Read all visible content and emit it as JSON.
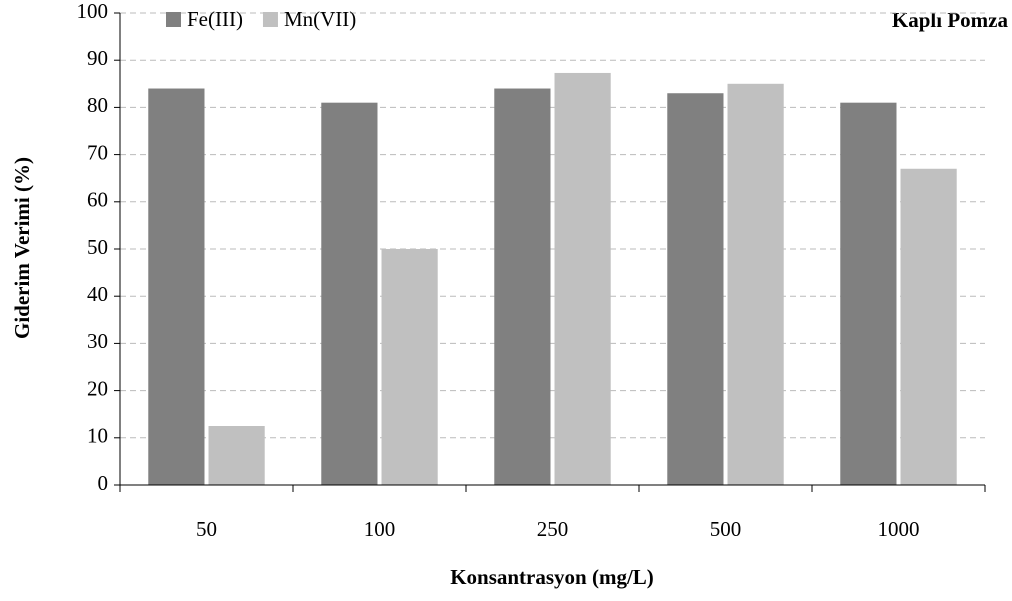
{
  "chart_data": {
    "type": "bar",
    "annotation": "Kaplı Pomza",
    "xlabel": "Konsantrasyon (mg/L)",
    "ylabel": "Giderim Verimi (%)",
    "categories": [
      "50",
      "100",
      "250",
      "500",
      "1000"
    ],
    "series": [
      {
        "name": "Fe(III)",
        "color": "#808080",
        "values": [
          84,
          81,
          84,
          83,
          81
        ]
      },
      {
        "name": "Mn(VII)",
        "color": "#c0c0c0",
        "values": [
          12.5,
          50,
          87.3,
          85,
          67
        ]
      }
    ],
    "ylim": [
      0,
      100
    ],
    "yticks": [
      0,
      10,
      20,
      30,
      40,
      50,
      60,
      70,
      80,
      90,
      100
    ],
    "grid": true,
    "legend": "top-left"
  }
}
